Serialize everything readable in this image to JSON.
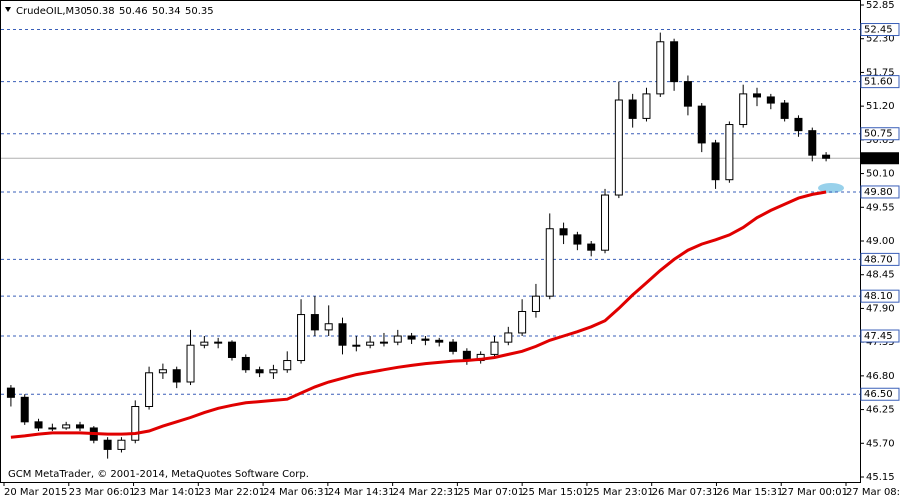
{
  "chart_data": {
    "type": "candlestick",
    "title": "CrudeOIL,M30",
    "ohlc": [
      50.38,
      50.46,
      50.34,
      50.35
    ],
    "footer": "GCM MetaTrader, © 2001-2014, MetaQuotes Software Corp.",
    "xtick_labels": [
      "20 Mar 2015",
      "23 Mar 06:01",
      "23 Mar 14:01",
      "23 Mar 22:01",
      "24 Mar 06:31",
      "24 Mar 14:31",
      "24 Mar 22:31",
      "25 Mar 07:01",
      "25 Mar 15:01",
      "25 Mar 23:01",
      "26 Mar 07:31",
      "26 Mar 15:31",
      "27 Mar 00:01",
      "27 Mar 08:01"
    ],
    "open": [
      46.6,
      46.45,
      46.05,
      45.95,
      45.95,
      46.0,
      45.95,
      45.75,
      45.6,
      45.75,
      46.3,
      46.85,
      46.9,
      46.7,
      47.3,
      47.35,
      47.35,
      47.1,
      46.9,
      46.85,
      46.9,
      47.05,
      47.8,
      47.55,
      47.65,
      47.3,
      47.3,
      47.35,
      47.35,
      47.45,
      47.4,
      47.38,
      47.35,
      47.2,
      47.05,
      47.15,
      47.35,
      47.5,
      47.85,
      48.1,
      49.2,
      49.1,
      48.95,
      48.85,
      49.75,
      51.3,
      51.0,
      51.4,
      52.25,
      51.6,
      51.2,
      50.6,
      50.0,
      50.9,
      51.4,
      51.35,
      51.25,
      51.0,
      50.8,
      50.4
    ],
    "high": [
      46.65,
      46.5,
      46.1,
      46.02,
      46.05,
      46.05,
      45.98,
      45.8,
      45.8,
      46.4,
      46.95,
      47.0,
      46.95,
      47.55,
      47.45,
      47.42,
      47.38,
      47.15,
      46.95,
      46.98,
      47.2,
      48.05,
      48.1,
      47.95,
      47.75,
      47.45,
      47.45,
      47.5,
      47.55,
      47.5,
      47.45,
      47.42,
      47.4,
      47.25,
      47.2,
      47.45,
      47.6,
      48.05,
      48.3,
      49.45,
      49.3,
      49.15,
      49.0,
      49.85,
      51.6,
      51.4,
      51.5,
      52.4,
      52.3,
      51.7,
      51.25,
      50.65,
      50.95,
      51.55,
      51.5,
      51.4,
      51.3,
      51.05,
      50.85,
      50.45
    ],
    "low": [
      46.3,
      46.0,
      45.9,
      45.9,
      45.92,
      45.9,
      45.7,
      45.45,
      45.55,
      45.7,
      46.25,
      46.75,
      46.6,
      46.65,
      47.25,
      47.25,
      47.05,
      46.85,
      46.78,
      46.75,
      46.85,
      47.0,
      47.45,
      47.45,
      47.15,
      47.2,
      47.25,
      47.28,
      47.3,
      47.32,
      47.3,
      47.28,
      47.15,
      46.98,
      47.0,
      47.1,
      47.3,
      47.45,
      47.75,
      48.05,
      48.95,
      48.85,
      48.75,
      48.8,
      49.7,
      50.85,
      50.95,
      51.35,
      51.45,
      51.05,
      50.45,
      49.85,
      49.95,
      50.85,
      51.2,
      51.15,
      50.95,
      50.7,
      50.3,
      50.3
    ],
    "close": [
      46.45,
      46.05,
      45.95,
      45.95,
      46.0,
      45.95,
      45.75,
      45.6,
      45.75,
      46.3,
      46.85,
      46.9,
      46.7,
      47.3,
      47.35,
      47.35,
      47.1,
      46.9,
      46.85,
      46.9,
      47.05,
      47.8,
      47.55,
      47.65,
      47.3,
      47.3,
      47.35,
      47.35,
      47.45,
      47.4,
      47.38,
      47.35,
      47.2,
      47.05,
      47.15,
      47.35,
      47.5,
      47.85,
      48.1,
      49.2,
      49.1,
      48.95,
      48.85,
      49.75,
      51.3,
      51.0,
      51.4,
      52.25,
      51.6,
      51.2,
      50.6,
      50.0,
      50.9,
      51.4,
      51.35,
      51.25,
      51.0,
      50.8,
      50.4,
      50.35
    ],
    "moving_average": {
      "color": "#e00000",
      "values": [
        45.8,
        45.82,
        45.85,
        45.87,
        45.87,
        45.87,
        45.86,
        45.85,
        45.85,
        45.86,
        45.9,
        45.98,
        46.05,
        46.12,
        46.2,
        46.27,
        46.32,
        46.36,
        46.38,
        46.4,
        46.42,
        46.52,
        46.62,
        46.7,
        46.76,
        46.82,
        46.86,
        46.9,
        46.94,
        46.97,
        47.0,
        47.02,
        47.04,
        47.05,
        47.07,
        47.1,
        47.15,
        47.2,
        47.28,
        47.38,
        47.45,
        47.52,
        47.6,
        47.7,
        47.9,
        48.12,
        48.32,
        48.52,
        48.7,
        48.85,
        48.95,
        49.02,
        49.1,
        49.22,
        49.38,
        49.5,
        49.6,
        49.7,
        49.76,
        49.8
      ]
    },
    "ylim": [
      45.15,
      52.85
    ],
    "yticks": [
      52.85,
      {
        "value": 52.3,
        "label": "52.30"
      },
      51.75,
      {
        "value": 51.2,
        "label": "51.20"
      },
      50.65,
      {
        "value": 50.1,
        "label": "50.10"
      },
      49.55,
      {
        "value": 49.0,
        "label": "49.00"
      },
      48.45,
      {
        "value": 47.9,
        "label": "47.90"
      },
      47.35,
      {
        "value": 46.8,
        "label": "46.80"
      },
      46.25,
      {
        "value": 45.7,
        "label": "45.70"
      },
      45.15
    ],
    "levels": [
      52.45,
      {
        "value": 51.6,
        "label": "51.60"
      },
      50.75,
      {
        "value": 49.8,
        "label": "49.80"
      },
      {
        "value": 48.7,
        "label": "48.70"
      },
      {
        "value": 48.1,
        "label": "48.10"
      },
      47.45,
      {
        "value": 46.5,
        "label": "46.50"
      }
    ],
    "level_color": "#3a5fb8",
    "current_price": 50.35
  }
}
